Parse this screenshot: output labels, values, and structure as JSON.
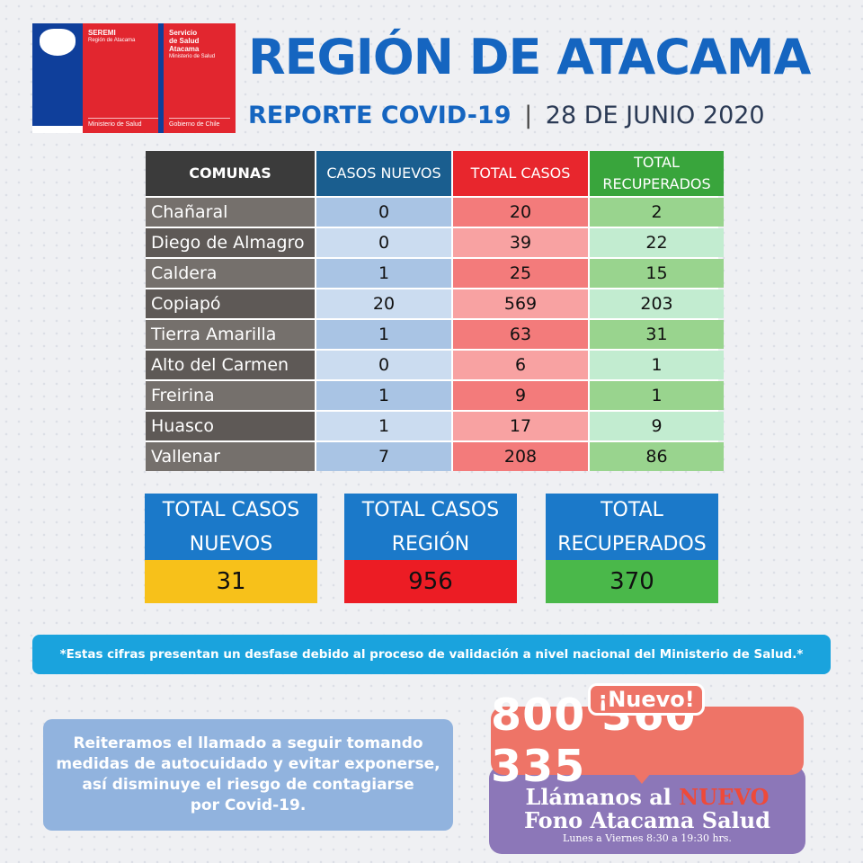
{
  "logos": {
    "seremi": {
      "line1": "SEREMI",
      "line2": "Región de Atacama",
      "bottom": "Ministerio de Salud"
    },
    "servicio": {
      "line1": "Servicio",
      "line2": "de Salud",
      "line3": "Atacama",
      "line4": "Ministerio de Salud",
      "bottom": "Gobierno de Chile"
    }
  },
  "header": {
    "title": "REGIÓN DE ATACAMA",
    "subtitle_bold": "REPORTE COVID-19",
    "separator": "|",
    "date": "28 DE JUNIO 2020"
  },
  "table": {
    "headers": [
      "COMUNAS",
      "CASOS NUEVOS",
      "TOTAL CASOS",
      "TOTAL RECUPERADOS"
    ],
    "rows": [
      {
        "comuna": "Chañaral",
        "nuevos": "0",
        "total": "20",
        "recuperados": "2"
      },
      {
        "comuna": "Diego de Almagro",
        "nuevos": "0",
        "total": "39",
        "recuperados": "22"
      },
      {
        "comuna": "Caldera",
        "nuevos": "1",
        "total": "25",
        "recuperados": "15"
      },
      {
        "comuna": "Copiapó",
        "nuevos": "20",
        "total": "569",
        "recuperados": "203"
      },
      {
        "comuna": "Tierra Amarilla",
        "nuevos": "1",
        "total": "63",
        "recuperados": "31"
      },
      {
        "comuna": "Alto del Carmen",
        "nuevos": "0",
        "total": "6",
        "recuperados": "1"
      },
      {
        "comuna": "Freirina",
        "nuevos": "1",
        "total": "9",
        "recuperados": "1"
      },
      {
        "comuna": "Huasco",
        "nuevos": "1",
        "total": "17",
        "recuperados": "9"
      },
      {
        "comuna": "Vallenar",
        "nuevos": "7",
        "total": "208",
        "recuperados": "86"
      }
    ]
  },
  "totals": [
    {
      "line1": "TOTAL CASOS",
      "line2": "NUEVOS",
      "value": "31",
      "color": "#f7c11a"
    },
    {
      "line1": "TOTAL CASOS",
      "line2": "REGIÓN",
      "value": "956",
      "color": "#ec1c24"
    },
    {
      "line1": "TOTAL",
      "line2": "RECUPERADOS",
      "value": "370",
      "color": "#4ab84a"
    }
  ],
  "note": "*Estas cifras presentan un desfase debido al proceso de validación a nivel nacional del Ministerio de Salud.*",
  "message": {
    "line1": "Reiteramos el llamado a seguir tomando",
    "line2": "medidas de autocuidado y evitar exponerse,",
    "line3": "así disminuye el riesgo de contagiarse",
    "line4": "por Covid-19."
  },
  "promo": {
    "badge": "¡Nuevo!",
    "phone": "800 360 335",
    "call_prefix": "Llámanos al",
    "call_highlight": "NUEVO",
    "call_line2": "Fono Atacama Salud",
    "hours": "Lunes a Viernes 8:30 a 19:30 hrs."
  }
}
